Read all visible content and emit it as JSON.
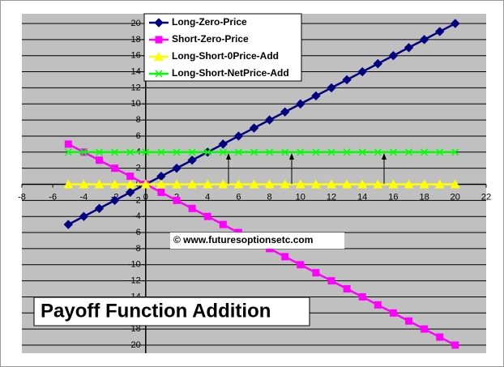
{
  "chart_data": {
    "type": "line",
    "title": "Payoff Function Addition",
    "annotation": "© www.futuresoptionsetc.com",
    "x": [
      -5,
      -4,
      -3,
      -2,
      -1,
      0,
      1,
      2,
      3,
      4,
      5,
      6,
      7,
      8,
      9,
      10,
      11,
      12,
      13,
      14,
      15,
      16,
      17,
      18,
      19,
      20
    ],
    "series": [
      {
        "name": "Long-Zero-Price",
        "color": "#000080",
        "marker": "diamond",
        "values": [
          -5,
          -4,
          -3,
          -2,
          -1,
          0,
          1,
          2,
          3,
          4,
          5,
          6,
          7,
          8,
          9,
          10,
          11,
          12,
          13,
          14,
          15,
          16,
          17,
          18,
          19,
          20
        ]
      },
      {
        "name": "Short-Zero-Price",
        "color": "#ff00ff",
        "marker": "square",
        "values": [
          5,
          4,
          3,
          2,
          1,
          0,
          -1,
          -2,
          -3,
          -4,
          -5,
          -6,
          -7,
          -8,
          -9,
          -10,
          -11,
          -12,
          -13,
          -14,
          -15,
          -16,
          -17,
          -18,
          -19,
          -20
        ]
      },
      {
        "name": "Long-Short-0Price-Add",
        "color": "#ffff00",
        "marker": "triangle",
        "values": [
          0,
          0,
          0,
          0,
          0,
          0,
          0,
          0,
          0,
          0,
          0,
          0,
          0,
          0,
          0,
          0,
          0,
          0,
          0,
          0,
          0,
          0,
          0,
          0,
          0,
          0
        ]
      },
      {
        "name": "Long-Short-NetPrice-Add",
        "color": "#00ff00",
        "marker": "x",
        "values": [
          4,
          4,
          4,
          4,
          4,
          4,
          4,
          4,
          4,
          4,
          4,
          4,
          4,
          4,
          4,
          4,
          4,
          4,
          4,
          4,
          4,
          4,
          4,
          4,
          4,
          4
        ]
      }
    ],
    "xlim": [
      -8,
      22
    ],
    "xticks": [
      -8,
      -6,
      -4,
      -2,
      0,
      2,
      4,
      6,
      8,
      10,
      12,
      14,
      16,
      18,
      20,
      22
    ],
    "ylim": [
      -20,
      20
    ],
    "yticks": [
      -20,
      -18,
      -16,
      -14,
      -12,
      -10,
      -8,
      -6,
      -4,
      -2,
      0,
      2,
      4,
      6,
      8,
      10,
      12,
      14,
      16,
      18,
      20
    ],
    "grid": true
  }
}
